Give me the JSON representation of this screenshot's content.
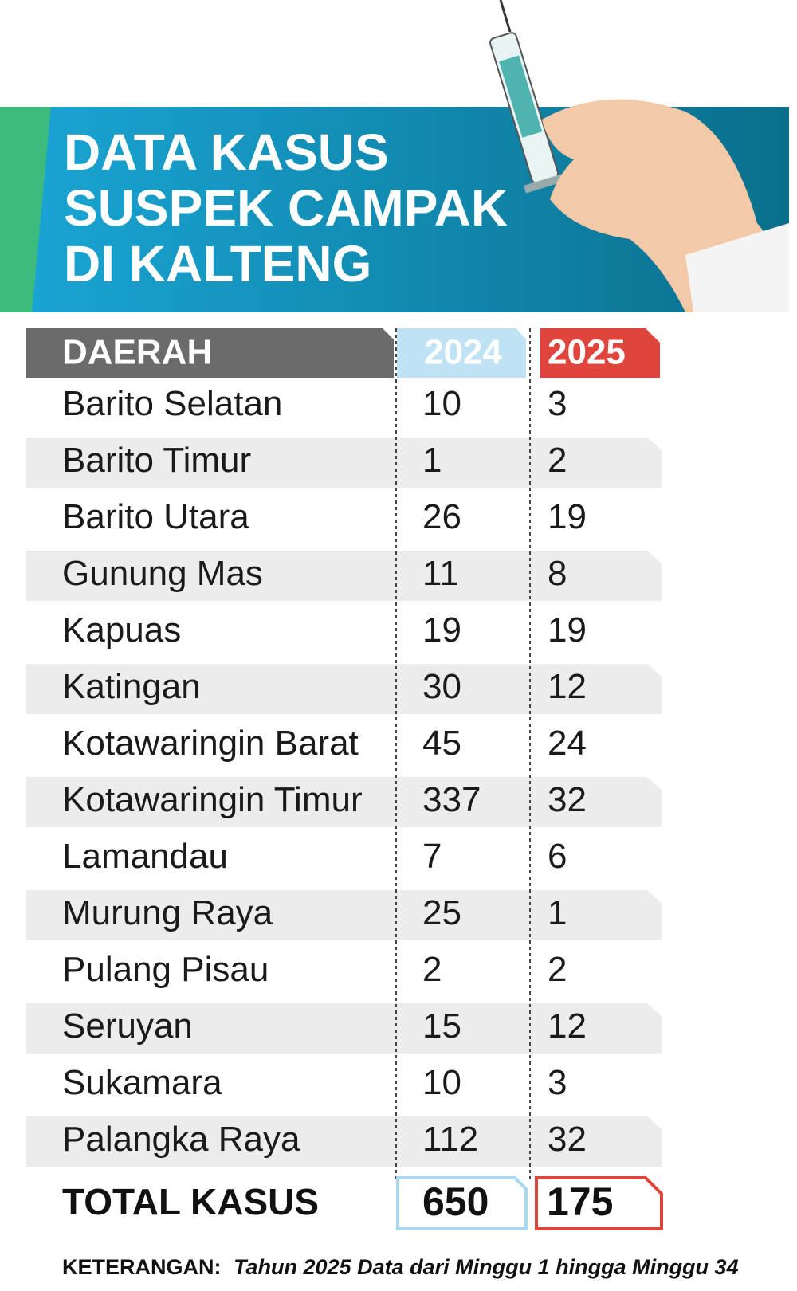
{
  "title": {
    "lines": [
      "DATA KASUS",
      "SUSPEK CAMPAK",
      "DI KALTENG"
    ]
  },
  "table": {
    "header": [
      "DAERAH",
      "2024",
      "2025"
    ],
    "rows": [
      [
        "Barito Selatan",
        10,
        3
      ],
      [
        "Barito Timur",
        1,
        2
      ],
      [
        "Barito Utara",
        26,
        19
      ],
      [
        "Gunung Mas",
        11,
        8
      ],
      [
        "Kapuas",
        19,
        19
      ],
      [
        "Katingan",
        30,
        12
      ],
      [
        "Kotawaringin Barat",
        45,
        24
      ],
      [
        "Kotawaringin Timur",
        337,
        32
      ],
      [
        "Lamandau",
        7,
        6
      ],
      [
        "Murung Raya",
        25,
        1
      ],
      [
        "Pulang Pisau",
        2,
        2
      ],
      [
        "Seruyan",
        15,
        12
      ],
      [
        "Sukamara",
        10,
        3
      ],
      [
        "Palangka Raya",
        112,
        32
      ]
    ],
    "total": [
      "TOTAL KASUS",
      650,
      175
    ]
  },
  "note": {
    "label": "KETERANGAN:",
    "text": "Tahun 2025 Data dari Minggu 1 hingga Minggu 34"
  }
}
